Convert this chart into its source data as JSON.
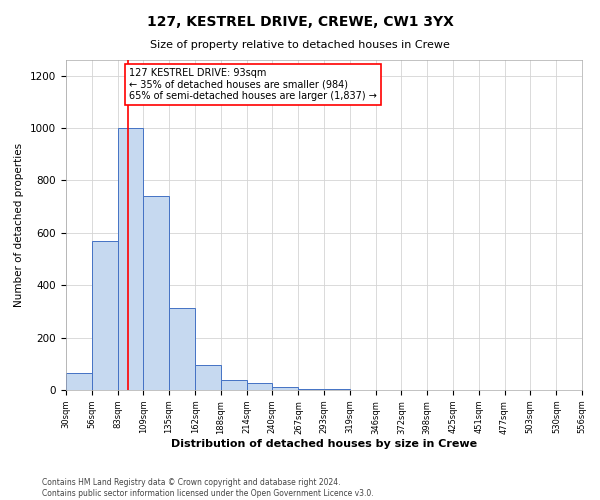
{
  "title1": "127, KESTREL DRIVE, CREWE, CW1 3YX",
  "title2": "Size of property relative to detached houses in Crewe",
  "xlabel": "Distribution of detached houses by size in Crewe",
  "ylabel": "Number of detached properties",
  "bar_edges": [
    30,
    56,
    83,
    109,
    135,
    162,
    188,
    214,
    240,
    267,
    293,
    319,
    346,
    372,
    398,
    425,
    451,
    477,
    503,
    530,
    556
  ],
  "bar_heights": [
    65,
    570,
    1000,
    740,
    315,
    95,
    40,
    25,
    10,
    3,
    2,
    1,
    1,
    0,
    0,
    0,
    0,
    0,
    0,
    0
  ],
  "bar_color": "#c6d9f0",
  "bar_edge_color": "#4472c4",
  "vline_x": 93,
  "vline_color": "red",
  "annotation_line1": "127 KESTREL DRIVE: 93sqm",
  "annotation_line2": "← 35% of detached houses are smaller (984)",
  "annotation_line3": "65% of semi-detached houses are larger (1,837) →",
  "annotation_box_color": "white",
  "annotation_box_edge_color": "red",
  "ylim": [
    0,
    1260
  ],
  "yticks": [
    0,
    200,
    400,
    600,
    800,
    1000,
    1200
  ],
  "footer1": "Contains HM Land Registry data © Crown copyright and database right 2024.",
  "footer2": "Contains public sector information licensed under the Open Government Licence v3.0.",
  "bg_color": "white",
  "grid_color": "#d5d5d5"
}
